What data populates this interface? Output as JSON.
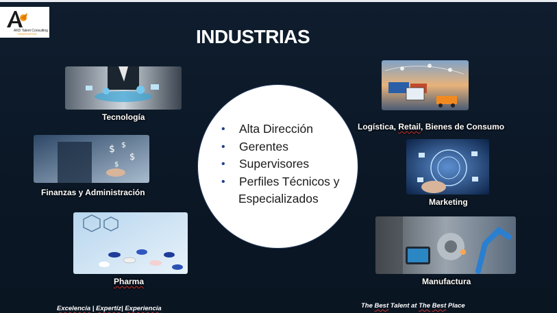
{
  "slide": {
    "title": "INDUSTRIAS",
    "logo": {
      "name": "AKD Talent Consulting",
      "tagline": "HEADHUNTING"
    },
    "center_bullets": [
      "Alta Dirección",
      "Gerentes",
      "Supervisores",
      "Perfiles Técnicos y",
      "Especializados"
    ],
    "industries": {
      "tecnologia": "Tecnología",
      "finanzas": "Finanzas y Administración",
      "pharma": "Pharma",
      "logistica_prefix": "Logística,",
      "logistica_retail": "Retail",
      "logistica_suffix": ", Bienes de Consumo",
      "marketing": "Marketing",
      "manufactura": "Manufactura"
    },
    "footer_left": {
      "excelencia": "Excelencia",
      "sep1": " | ",
      "expertiz": "Expertíz",
      "sep2": "| ",
      "experiencia": "Experiencia"
    },
    "footer_right": {
      "p1": "The ",
      "best1": "Best",
      "p2": " Talent at ",
      "the2": "The",
      "p3": " ",
      "best2": "Best",
      "p4": " Place"
    },
    "colors": {
      "background": "#0d1a2a",
      "title": "#ffffff",
      "circle": "#ffffff",
      "bullet": "#1f3f8a",
      "accent_orange": "#e58a00"
    }
  }
}
